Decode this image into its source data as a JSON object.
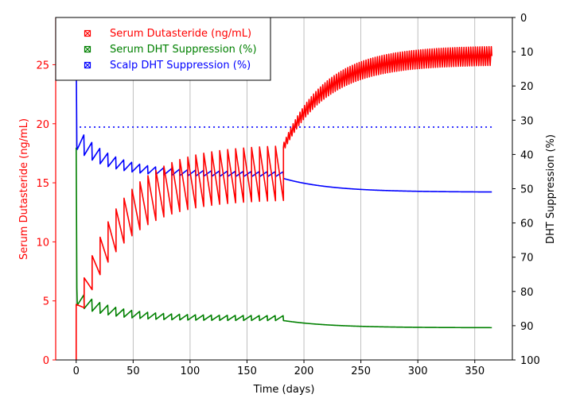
{
  "chart_data": {
    "type": "line",
    "title": "",
    "xlabel": "Time (days)",
    "ylabel_left": "Serum Dutasteride (ng/mL)",
    "ylabel_right": "DHT Suppression (%)",
    "xlim": [
      -18,
      383
    ],
    "ylim_left": [
      0,
      29
    ],
    "ylim_right": [
      100,
      0
    ],
    "right_axis_inverted": true,
    "grid": "vertical",
    "legend_position": "top-left",
    "x_ticks": [
      0,
      50,
      100,
      150,
      200,
      250,
      300,
      350
    ],
    "y_left_ticks": [
      0,
      5,
      10,
      15,
      20,
      25
    ],
    "y_right_ticks": [
      0,
      10,
      20,
      30,
      40,
      50,
      60,
      70,
      80,
      90,
      100
    ],
    "colors": {
      "left_axis": "#ff0000",
      "serum_dutasteride": "#ff0000",
      "serum_dht": "#008000",
      "scalp_dht": "#0000ff",
      "scalp_reference": "#0000ff",
      "grid": "#b0b0b0"
    },
    "series": [
      {
        "name": "Serum Dutasteride (ng/mL)",
        "axis": "left",
        "style": "solid",
        "phase1": {
          "dose_interval_days": 7,
          "end_day": 182,
          "peak_start": 4.7,
          "peak_end": 18.1,
          "trough_start": 2.6,
          "trough_end": 13.5
        },
        "phase2": {
          "start_day": 182,
          "end_day": 365,
          "start_value": 18.0,
          "plateau_mean": 25.8,
          "oscillation_amplitude": 0.8
        }
      },
      {
        "name": "Serum DHT Suppression (%)",
        "axis": "right",
        "style": "solid",
        "phase1": {
          "dose_interval_days": 7,
          "end_day": 182,
          "initial_value": 38,
          "first_trough": 79,
          "level_start": 84,
          "level_end": 88.5
        },
        "phase2": {
          "start_day": 182,
          "end_day": 365,
          "start_value": 88.5,
          "plateau": 90.6
        }
      },
      {
        "name": "Scalp DHT Suppression (%)",
        "axis": "right",
        "style": "solid",
        "phase1": {
          "dose_interval_days": 7,
          "end_day": 182,
          "initial_value": 10,
          "first_trough": 37.5,
          "level_start": 38.5,
          "level_end": 46.5
        },
        "phase2": {
          "start_day": 182,
          "end_day": 365,
          "start_value": 47,
          "plateau": 51
        }
      },
      {
        "name": "",
        "axis": "right",
        "style": "dotted",
        "x": [
          3,
          365
        ],
        "values": [
          32,
          32
        ]
      }
    ]
  }
}
